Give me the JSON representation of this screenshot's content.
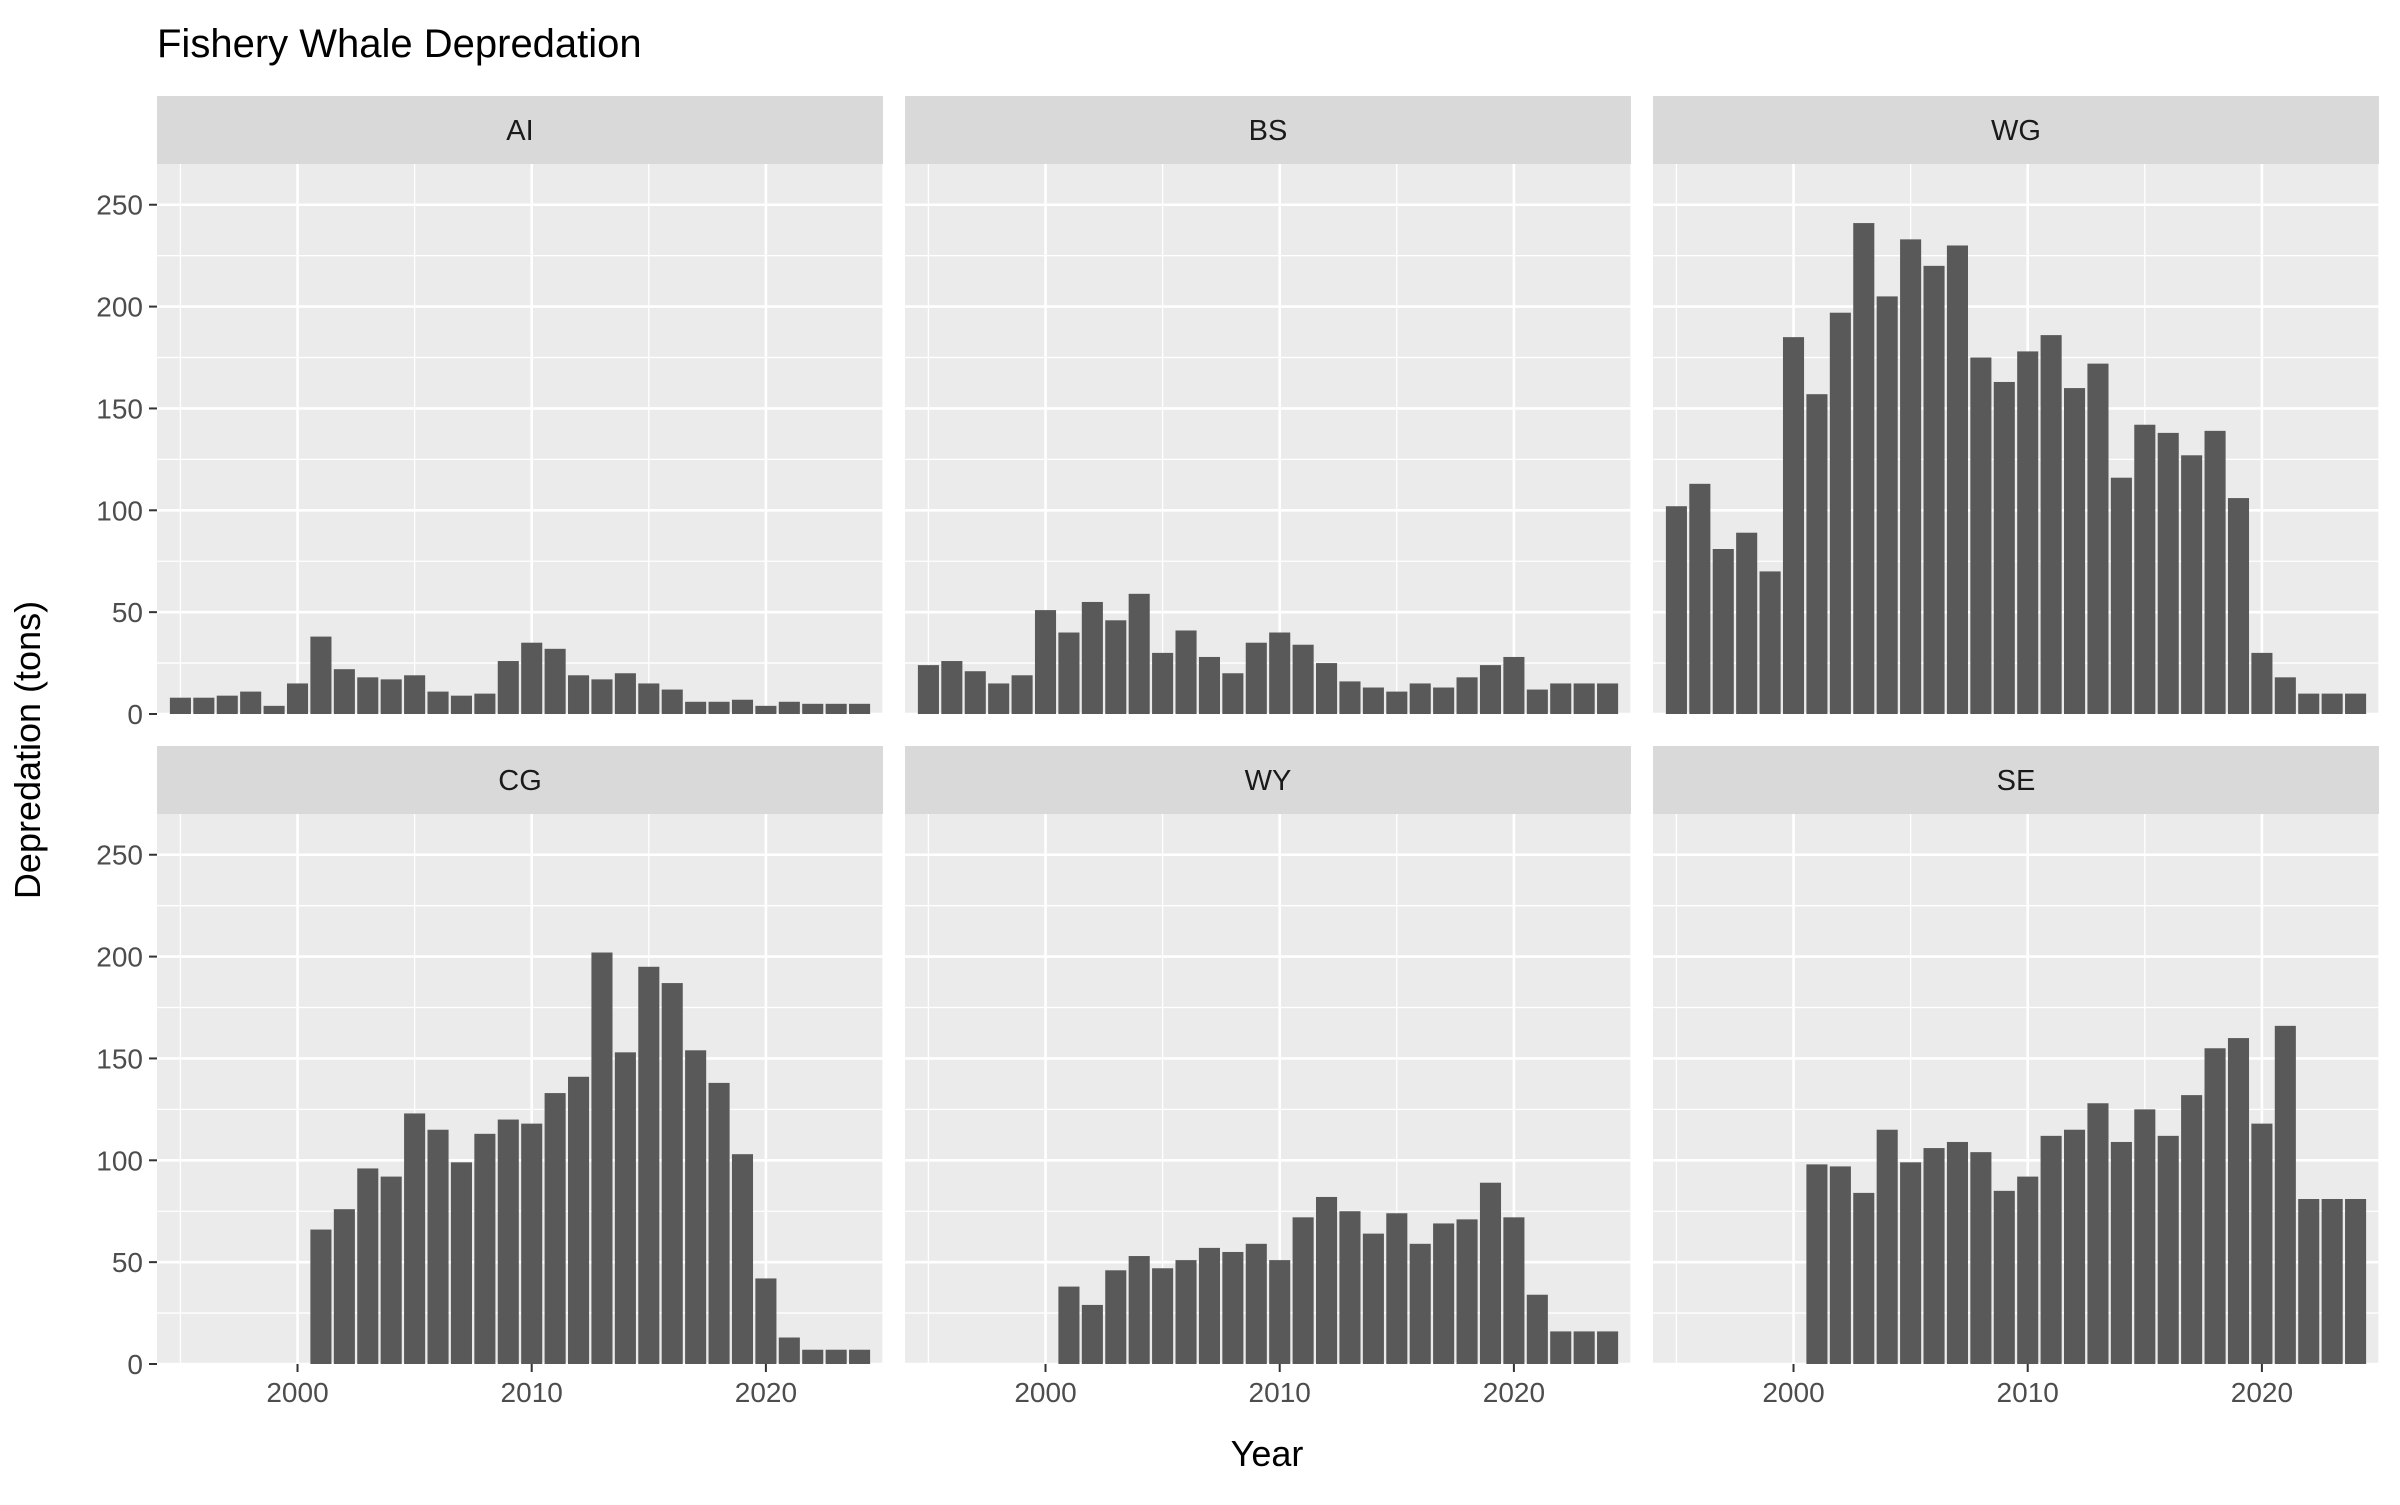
{
  "chart_data": {
    "type": "bar",
    "title": "Fishery Whale Depredation",
    "xlabel": "Year",
    "ylabel": "Depredation (tons)",
    "xlim": [
      1994,
      2025
    ],
    "ylim": [
      0,
      270
    ],
    "x_ticks": [
      2000,
      2010,
      2020
    ],
    "y_ticks": [
      0,
      50,
      100,
      150,
      200,
      250
    ],
    "grid": true,
    "facet_layout": "2 rows x 3 columns, shared axes",
    "bar_color": "#595959",
    "panel_background": "#EBEBEB",
    "strip_background": "#D9D9D9",
    "panels": [
      {
        "name": "AI",
        "x": [
          1995,
          1996,
          1997,
          1998,
          1999,
          2000,
          2001,
          2002,
          2003,
          2004,
          2005,
          2006,
          2007,
          2008,
          2009,
          2010,
          2011,
          2012,
          2013,
          2014,
          2015,
          2016,
          2017,
          2018,
          2019,
          2020,
          2021,
          2022,
          2023,
          2024
        ],
        "values": [
          8,
          8,
          9,
          11,
          4,
          15,
          38,
          22,
          18,
          17,
          19,
          11,
          9,
          10,
          26,
          35,
          32,
          19,
          17,
          20,
          15,
          12,
          6,
          6,
          7,
          4,
          6,
          5,
          5,
          5
        ]
      },
      {
        "name": "BS",
        "x": [
          1995,
          1996,
          1997,
          1998,
          1999,
          2000,
          2001,
          2002,
          2003,
          2004,
          2005,
          2006,
          2007,
          2008,
          2009,
          2010,
          2011,
          2012,
          2013,
          2014,
          2015,
          2016,
          2017,
          2018,
          2019,
          2020,
          2021,
          2022,
          2023,
          2024
        ],
        "values": [
          24,
          26,
          21,
          15,
          19,
          51,
          40,
          55,
          46,
          59,
          30,
          41,
          28,
          20,
          35,
          40,
          34,
          25,
          16,
          13,
          11,
          15,
          13,
          18,
          24,
          28,
          12,
          15,
          15,
          15
        ]
      },
      {
        "name": "WG",
        "x": [
          1995,
          1996,
          1997,
          1998,
          1999,
          2000,
          2001,
          2002,
          2003,
          2004,
          2005,
          2006,
          2007,
          2008,
          2009,
          2010,
          2011,
          2012,
          2013,
          2014,
          2015,
          2016,
          2017,
          2018,
          2019,
          2020,
          2021,
          2022,
          2023,
          2024
        ],
        "values": [
          102,
          113,
          81,
          89,
          70,
          185,
          157,
          197,
          241,
          205,
          233,
          220,
          230,
          175,
          163,
          178,
          186,
          160,
          172,
          116,
          142,
          138,
          127,
          139,
          106,
          30,
          18,
          10,
          10,
          10
        ]
      },
      {
        "name": "CG",
        "x": [
          2001,
          2002,
          2003,
          2004,
          2005,
          2006,
          2007,
          2008,
          2009,
          2010,
          2011,
          2012,
          2013,
          2014,
          2015,
          2016,
          2017,
          2018,
          2019,
          2020,
          2021,
          2022,
          2023,
          2024
        ],
        "values": [
          66,
          76,
          96,
          92,
          123,
          115,
          99,
          113,
          120,
          118,
          133,
          141,
          202,
          153,
          195,
          187,
          154,
          138,
          103,
          42,
          13,
          7,
          7,
          7
        ]
      },
      {
        "name": "WY",
        "x": [
          2001,
          2002,
          2003,
          2004,
          2005,
          2006,
          2007,
          2008,
          2009,
          2010,
          2011,
          2012,
          2013,
          2014,
          2015,
          2016,
          2017,
          2018,
          2019,
          2020,
          2021,
          2022,
          2023,
          2024
        ],
        "values": [
          38,
          29,
          46,
          53,
          47,
          51,
          57,
          55,
          59,
          51,
          72,
          82,
          75,
          64,
          74,
          59,
          69,
          71,
          89,
          72,
          34,
          16,
          16,
          16
        ]
      },
      {
        "name": "SE",
        "x": [
          2001,
          2002,
          2003,
          2004,
          2005,
          2006,
          2007,
          2008,
          2009,
          2010,
          2011,
          2012,
          2013,
          2014,
          2015,
          2016,
          2017,
          2018,
          2019,
          2020,
          2021,
          2022,
          2023,
          2024
        ],
        "values": [
          98,
          97,
          84,
          115,
          99,
          106,
          109,
          104,
          85,
          92,
          112,
          115,
          128,
          109,
          125,
          112,
          132,
          155,
          160,
          118,
          166,
          81,
          81,
          81
        ]
      }
    ]
  }
}
